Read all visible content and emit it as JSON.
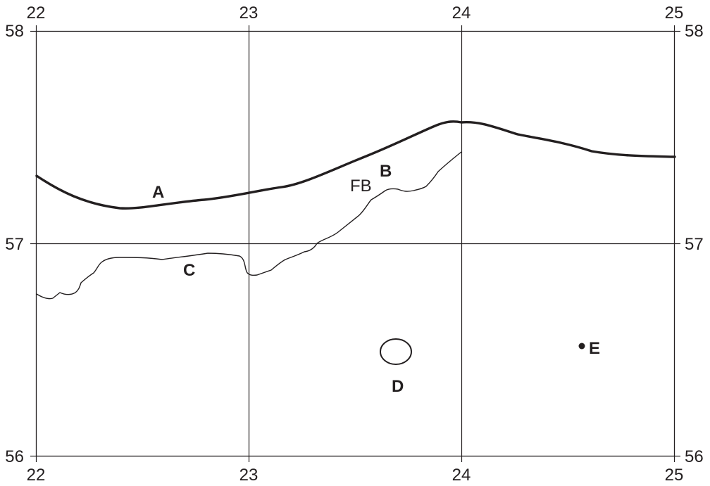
{
  "map": {
    "top_lon_labels": [
      "22",
      "23",
      "24",
      "25"
    ],
    "bottom_lon_labels": [
      "22",
      "23",
      "24",
      "25"
    ],
    "left_lat_labels": [
      "58",
      "57",
      "56"
    ],
    "right_lat_labels": [
      "58",
      "57",
      "56"
    ],
    "labels": {
      "a": "A",
      "b": "B",
      "fb": "FB",
      "c": "C",
      "d": "D",
      "e": "E"
    },
    "line_color": "#231f20",
    "background_color": "#ffffff"
  }
}
